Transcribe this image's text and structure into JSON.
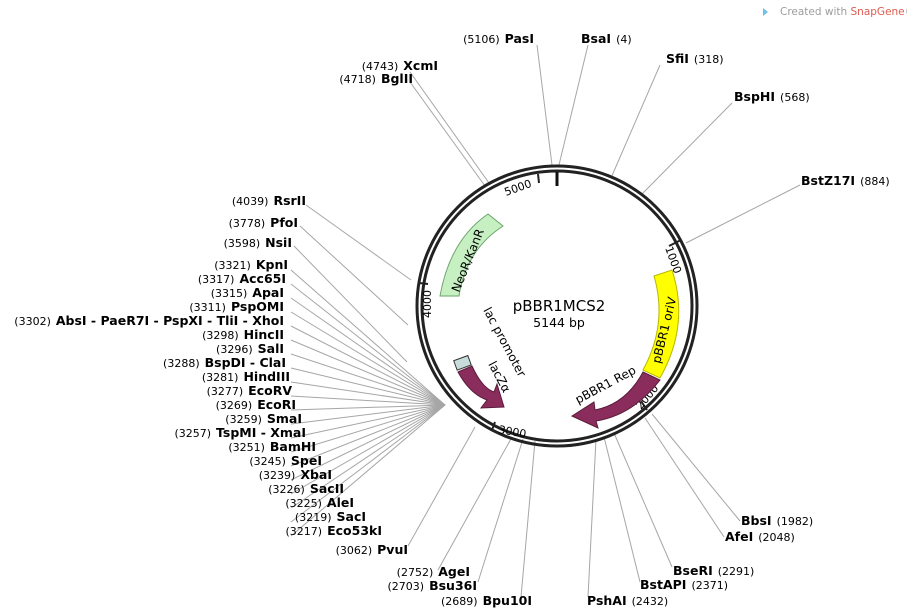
{
  "plasmid": {
    "name": "pBBR1MCS2",
    "size_label": "5144 bp"
  },
  "credit": {
    "prefix": "Created with ",
    "brand": "SnapGene"
  },
  "ticks": [
    "1000",
    "2000",
    "3000",
    "4000",
    "5000"
  ],
  "features": [
    {
      "label": "NeoR/KanR",
      "color": "#c6f0c2"
    },
    {
      "label": "pBBR1 oriV",
      "color": "#ffff00"
    },
    {
      "label": "pBBR1 Rep",
      "color": "#8b2d5c"
    },
    {
      "label": "lacZα",
      "color": "#8b2d5c"
    },
    {
      "label": "lac promoter",
      "color": "#c9dcdc"
    }
  ],
  "sites": {
    "pasi": {
      "pos": "(5106)",
      "name": "PasI"
    },
    "bsai": {
      "pos": "(4)",
      "name": "BsaI"
    },
    "sfii": {
      "pos": "(318)",
      "name": "SfiI"
    },
    "bsphi": {
      "pos": "(568)",
      "name": "BspHI"
    },
    "bstz17i": {
      "pos": "(884)",
      "name": "BstZ17I"
    },
    "xcmi": {
      "pos": "(4743)",
      "name": "XcmI"
    },
    "bglii": {
      "pos": "(4718)",
      "name": "BglII"
    },
    "rsrii": {
      "pos": "(4039)",
      "name": "RsrII"
    },
    "pfoi": {
      "pos": "(3778)",
      "name": "PfoI"
    },
    "nsii": {
      "pos": "(3598)",
      "name": "NsiI"
    },
    "kpni": {
      "pos": "(3321)",
      "name": "KpnI"
    },
    "acc65i": {
      "pos": "(3317)",
      "name": "Acc65I"
    },
    "apai": {
      "pos": "(3315)",
      "name": "ApaI"
    },
    "pspomi": {
      "pos": "(3311)",
      "name": "PspOMI"
    },
    "absi": {
      "pos": "(3302)",
      "name": "AbsI - PaeR7I - PspXI - TliI - XhoI"
    },
    "hincii": {
      "pos": "(3298)",
      "name": "HincII"
    },
    "sali": {
      "pos": "(3296)",
      "name": "SalI"
    },
    "bspdi": {
      "pos": "(3288)",
      "name": "BspDI - ClaI"
    },
    "hindiii": {
      "pos": "(3281)",
      "name": "HindIII"
    },
    "ecorv": {
      "pos": "(3277)",
      "name": "EcoRV"
    },
    "ecori": {
      "pos": "(3269)",
      "name": "EcoRI"
    },
    "smai": {
      "pos": "(3259)",
      "name": "SmaI"
    },
    "tspmi": {
      "pos": "(3257)",
      "name": "TspMI - XmaI"
    },
    "bamhi": {
      "pos": "(3251)",
      "name": "BamHI"
    },
    "spei": {
      "pos": "(3245)",
      "name": "SpeI"
    },
    "xbai": {
      "pos": "(3239)",
      "name": "XbaI"
    },
    "sacii": {
      "pos": "(3226)",
      "name": "SacII"
    },
    "alei": {
      "pos": "(3225)",
      "name": "AleI"
    },
    "saci": {
      "pos": "(3219)",
      "name": "SacI"
    },
    "eco53ki": {
      "pos": "(3217)",
      "name": "Eco53kI"
    },
    "pvui": {
      "pos": "(3062)",
      "name": "PvuI"
    },
    "agei": {
      "pos": "(2752)",
      "name": "AgeI"
    },
    "bsu36i": {
      "pos": "(2703)",
      "name": "Bsu36I"
    },
    "bpu10i": {
      "pos": "(2689)",
      "name": "Bpu10I"
    },
    "pshai": {
      "pos": "(2432)",
      "name": "PshAI"
    },
    "bstapi": {
      "pos": "(2371)",
      "name": "BstAPI"
    },
    "bseri": {
      "pos": "(2291)",
      "name": "BseRI"
    },
    "afei": {
      "pos": "(2048)",
      "name": "AfeI"
    },
    "bbsi": {
      "pos": "(1982)",
      "name": "BbsI"
    }
  }
}
